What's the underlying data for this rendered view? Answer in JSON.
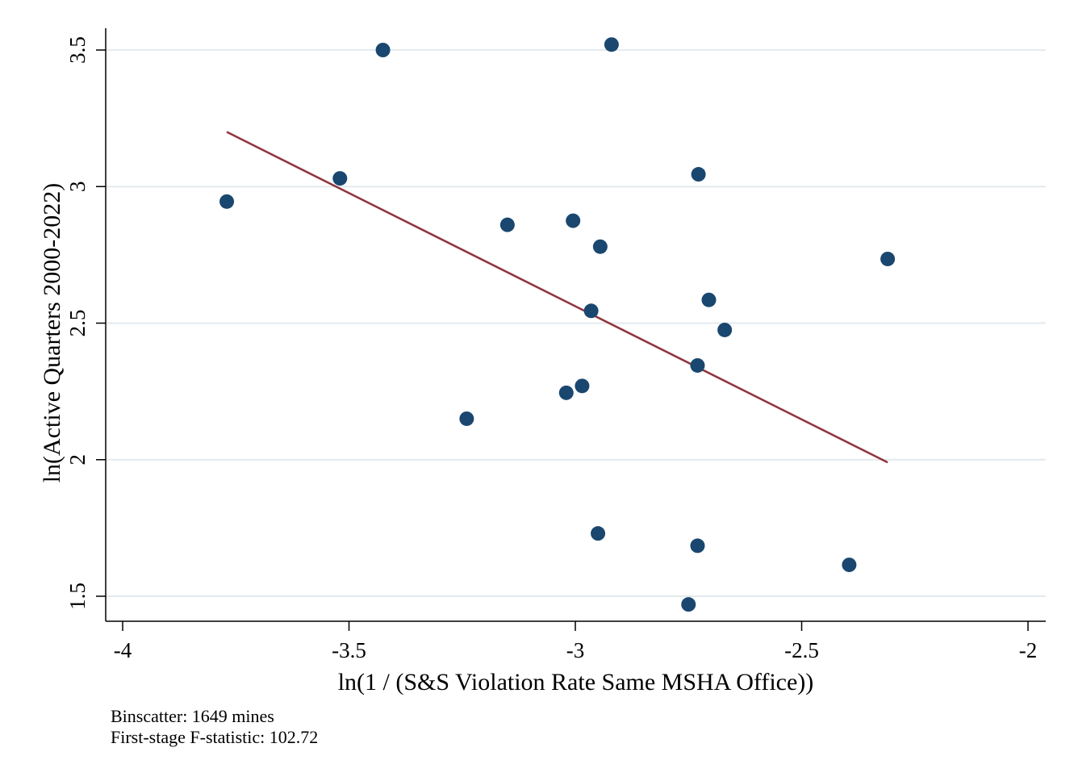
{
  "chart_data": {
    "type": "scatter",
    "xlabel": "ln(1 / (S&S Violation Rate Same MSHA Office))",
    "ylabel": "ln(Active Quarters 2000-2022)",
    "xlim": [
      -4,
      -2
    ],
    "ylim": [
      1.5,
      3.5
    ],
    "x_ticks": [
      -4,
      -3.5,
      -3,
      -2.5,
      -2
    ],
    "x_tick_labels": [
      "-4",
      "-3.5",
      "-3",
      "-2.5",
      "-2"
    ],
    "y_ticks": [
      1.5,
      2,
      2.5,
      3,
      3.5
    ],
    "y_tick_labels": [
      "1.5",
      "2",
      "2.5",
      "3",
      "3.5"
    ],
    "grid": "horizontal",
    "marker_color": "#1a476f",
    "fit_color": "#90353b",
    "points": [
      {
        "x": -3.77,
        "y": 2.945
      },
      {
        "x": -3.52,
        "y": 3.03
      },
      {
        "x": -3.425,
        "y": 3.5
      },
      {
        "x": -3.24,
        "y": 2.15
      },
      {
        "x": -3.15,
        "y": 2.86
      },
      {
        "x": -3.02,
        "y": 2.245
      },
      {
        "x": -3.005,
        "y": 2.875
      },
      {
        "x": -2.985,
        "y": 2.27
      },
      {
        "x": -2.965,
        "y": 2.545
      },
      {
        "x": -2.95,
        "y": 1.73
      },
      {
        "x": -2.945,
        "y": 2.78
      },
      {
        "x": -2.92,
        "y": 3.52
      },
      {
        "x": -2.75,
        "y": 1.47
      },
      {
        "x": -2.73,
        "y": 1.685
      },
      {
        "x": -2.73,
        "y": 2.345
      },
      {
        "x": -2.728,
        "y": 3.045
      },
      {
        "x": -2.705,
        "y": 2.585
      },
      {
        "x": -2.67,
        "y": 2.475
      },
      {
        "x": -2.395,
        "y": 1.615
      },
      {
        "x": -2.31,
        "y": 2.735
      }
    ],
    "fit_line": {
      "x": [
        -3.77,
        -2.31
      ],
      "y": [
        3.2,
        1.99
      ]
    },
    "notes": [
      "Binscatter: 1649 mines",
      "First-stage F-statistic: 102.72"
    ]
  }
}
